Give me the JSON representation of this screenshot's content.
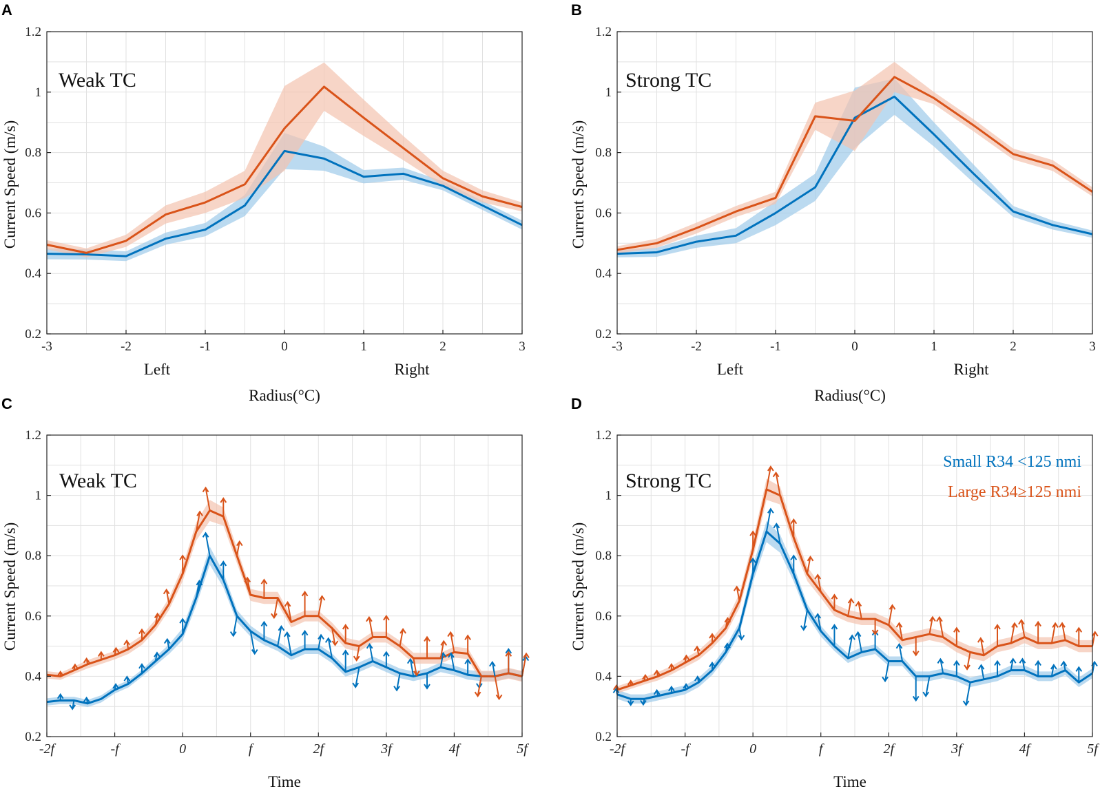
{
  "colors": {
    "small": "#0072BD",
    "small_band": "#9ECAE9",
    "large": "#D95319",
    "large_band": "#F3C3AF"
  },
  "legend": {
    "small": "Small R34 <125 nmi",
    "large": "Large R34≥125 nmi"
  },
  "chart_data": [
    {
      "id": "A",
      "type": "line",
      "title": "Weak TC",
      "xlabel": "Radius(°C)",
      "ylabel": "Current Speed (m/s)",
      "sublabels": [
        "Left",
        "Right"
      ],
      "xlim": [
        -3,
        3
      ],
      "ylim": [
        0.2,
        1.2
      ],
      "xticks": [
        -3,
        -2,
        -1,
        0,
        1,
        2,
        3
      ],
      "xticklabels": [
        "-3",
        "-2",
        "-1",
        "0",
        "1",
        "2",
        "3"
      ],
      "yticks": [
        0.2,
        0.4,
        0.6,
        0.8,
        1,
        1.2
      ],
      "yticklabels": [
        "0.2",
        "0.4",
        "0.6",
        "0.8",
        "1",
        "1.2"
      ],
      "x": [
        -3,
        -2.5,
        -2,
        -1.5,
        -1,
        -0.5,
        0,
        0.5,
        1,
        1.5,
        2,
        2.5,
        3
      ],
      "series": [
        {
          "name": "Small R34 <125 nmi",
          "values": [
            0.465,
            0.463,
            0.457,
            0.515,
            0.545,
            0.625,
            0.805,
            0.78,
            0.72,
            0.73,
            0.69,
            0.625,
            0.56
          ],
          "band": [
            0.018,
            0.017,
            0.016,
            0.02,
            0.022,
            0.035,
            0.06,
            0.04,
            0.022,
            0.02,
            0.015,
            0.015,
            0.015
          ]
        },
        {
          "name": "Large R34≥125 nmi",
          "values": [
            0.495,
            0.468,
            0.508,
            0.595,
            0.635,
            0.695,
            0.88,
            1.018,
            0.915,
            0.815,
            0.715,
            0.655,
            0.62
          ],
          "band": [
            0.015,
            0.015,
            0.02,
            0.03,
            0.035,
            0.045,
            0.14,
            0.08,
            0.06,
            0.04,
            0.025,
            0.02,
            0.015
          ]
        }
      ]
    },
    {
      "id": "B",
      "type": "line",
      "title": "Strong TC",
      "xlabel": "Radius(°C)",
      "ylabel": "Current Speed (m/s)",
      "sublabels": [
        "Left",
        "Right"
      ],
      "xlim": [
        -3,
        3
      ],
      "ylim": [
        0.2,
        1.2
      ],
      "xticks": [
        -3,
        -2,
        -1,
        0,
        1,
        2,
        3
      ],
      "xticklabels": [
        "-3",
        "-2",
        "-1",
        "0",
        "1",
        "2",
        "3"
      ],
      "yticks": [
        0.2,
        0.4,
        0.6,
        0.8,
        1,
        1.2
      ],
      "yticklabels": [
        "0.2",
        "0.4",
        "0.6",
        "0.8",
        "1",
        "1.2"
      ],
      "x": [
        -3,
        -2.5,
        -2,
        -1.5,
        -1,
        -0.5,
        0,
        0.5,
        1,
        1.5,
        2,
        2.5,
        3
      ],
      "series": [
        {
          "name": "Small R34 <125 nmi",
          "values": [
            0.465,
            0.47,
            0.505,
            0.525,
            0.6,
            0.685,
            0.915,
            0.985,
            0.86,
            0.73,
            0.605,
            0.56,
            0.53
          ],
          "band": [
            0.012,
            0.015,
            0.02,
            0.025,
            0.04,
            0.045,
            0.1,
            0.06,
            0.04,
            0.03,
            0.018,
            0.015,
            0.012
          ]
        },
        {
          "name": "Large R34≥125 nmi",
          "values": [
            0.478,
            0.5,
            0.55,
            0.605,
            0.65,
            0.92,
            0.905,
            1.05,
            0.98,
            0.89,
            0.795,
            0.757,
            0.67
          ],
          "band": [
            0.012,
            0.015,
            0.018,
            0.018,
            0.02,
            0.045,
            0.1,
            0.05,
            0.02,
            0.02,
            0.018,
            0.018,
            0.015
          ]
        }
      ]
    },
    {
      "id": "C",
      "type": "line",
      "title": "Weak TC",
      "xlabel": "Time",
      "ylabel": "Current Speed (m/s)",
      "xlim": [
        -2,
        5
      ],
      "ylim": [
        0.2,
        1.2
      ],
      "xticks": [
        -2,
        -1,
        0,
        1,
        2,
        3,
        4,
        5
      ],
      "xticklabels": [
        "-2f",
        "-f",
        "0",
        "f",
        "2f",
        "3f",
        "4f",
        "5f"
      ],
      "yticks": [
        0.2,
        0.4,
        0.6,
        0.8,
        1,
        1.2
      ],
      "yticklabels": [
        "0.2",
        "0.4",
        "0.6",
        "0.8",
        "1",
        "1.2"
      ],
      "x": [
        -2,
        -1.8,
        -1.6,
        -1.4,
        -1.2,
        -1,
        -0.8,
        -0.6,
        -0.4,
        -0.2,
        0,
        0.2,
        0.4,
        0.6,
        0.8,
        1,
        1.2,
        1.4,
        1.6,
        1.8,
        2,
        2.2,
        2.4,
        2.6,
        2.8,
        3,
        3.2,
        3.4,
        3.6,
        3.8,
        4,
        4.2,
        4.4,
        4.6,
        4.8,
        5
      ],
      "series": [
        {
          "name": "Small R34 <125 nmi",
          "values": [
            0.315,
            0.32,
            0.32,
            0.31,
            0.325,
            0.355,
            0.375,
            0.41,
            0.45,
            0.49,
            0.54,
            0.66,
            0.8,
            0.72,
            0.6,
            0.55,
            0.52,
            0.5,
            0.47,
            0.49,
            0.49,
            0.46,
            0.415,
            0.43,
            0.45,
            0.43,
            0.41,
            0.4,
            0.41,
            0.43,
            0.42,
            0.405,
            0.4,
            0.4,
            0.41,
            0.4
          ],
          "band": [
            0.012,
            0.012,
            0.012,
            0.012,
            0.012,
            0.012,
            0.012,
            0.012,
            0.014,
            0.016,
            0.02,
            0.025,
            0.03,
            0.025,
            0.02,
            0.018,
            0.016,
            0.016,
            0.016,
            0.016,
            0.016,
            0.016,
            0.016,
            0.016,
            0.016,
            0.016,
            0.016,
            0.016,
            0.016,
            0.016,
            0.016,
            0.016,
            0.016,
            0.016,
            0.016,
            0.016
          ],
          "arrows": [
            0,
            0.02,
            -0.03,
            0.02,
            0,
            0.02,
            0.025,
            0.03,
            0.03,
            0.035,
            0.05,
            0.06,
            0.08,
            0.06,
            -0.07,
            -0.08,
            0.06,
            0.07,
            0.08,
            0.06,
            0.05,
            0.07,
            0.07,
            -0.07,
            0.06,
            0.05,
            -0.06,
            0.06,
            -0.05,
            0.05,
            0.06,
            0.05,
            -0.04,
            0.05,
            0.08,
            0.07
          ]
        },
        {
          "name": "Large R34≥125 nmi",
          "values": [
            0.405,
            0.4,
            0.42,
            0.44,
            0.455,
            0.47,
            0.49,
            0.52,
            0.57,
            0.64,
            0.74,
            0.88,
            0.95,
            0.93,
            0.8,
            0.67,
            0.66,
            0.66,
            0.58,
            0.6,
            0.6,
            0.56,
            0.51,
            0.5,
            0.53,
            0.53,
            0.5,
            0.46,
            0.46,
            0.46,
            0.48,
            0.475,
            0.4,
            0.4,
            0.41,
            0.4
          ],
          "band": [
            0.012,
            0.012,
            0.012,
            0.014,
            0.014,
            0.014,
            0.016,
            0.016,
            0.018,
            0.02,
            0.025,
            0.03,
            0.035,
            0.03,
            0.025,
            0.02,
            0.02,
            0.02,
            0.018,
            0.018,
            0.018,
            0.018,
            0.018,
            0.018,
            0.018,
            0.018,
            0.018,
            0.018,
            0.018,
            0.018,
            0.018,
            0.018,
            0.018,
            0.018,
            0.018,
            0.018
          ],
          "arrows": [
            0,
            0.015,
            0.02,
            0.02,
            0.025,
            0.025,
            0.03,
            0.035,
            0.04,
            0.05,
            0.06,
            0.07,
            0.08,
            0.06,
            0.05,
            0.06,
            0.06,
            -0.07,
            0.07,
            0.08,
            0.07,
            -0.06,
            0.06,
            -0.05,
            0.07,
            0.07,
            0.06,
            -0.06,
            0.07,
            0.06,
            0.07,
            0.06,
            -0.07,
            -0.08,
            0.07,
            0.08
          ]
        }
      ]
    },
    {
      "id": "D",
      "type": "line",
      "title": "Strong TC",
      "xlabel": "Time",
      "ylabel": "Current Speed (m/s)",
      "legend": true,
      "xlim": [
        -2,
        5
      ],
      "ylim": [
        0.2,
        1.2
      ],
      "xticks": [
        -2,
        -1,
        0,
        1,
        2,
        3,
        4,
        5
      ],
      "xticklabels": [
        "-2f",
        "-f",
        "0",
        "f",
        "2f",
        "3f",
        "4f",
        "5f"
      ],
      "yticks": [
        0.2,
        0.4,
        0.6,
        0.8,
        1,
        1.2
      ],
      "yticklabels": [
        "0.2",
        "0.4",
        "0.6",
        "0.8",
        "1",
        "1.2"
      ],
      "x": [
        -2,
        -1.8,
        -1.6,
        -1.4,
        -1.2,
        -1,
        -0.8,
        -0.6,
        -0.4,
        -0.2,
        0,
        0.2,
        0.4,
        0.6,
        0.8,
        1,
        1.2,
        1.4,
        1.6,
        1.8,
        2,
        2.2,
        2.4,
        2.6,
        2.8,
        3,
        3.2,
        3.4,
        3.6,
        3.8,
        4,
        4.2,
        4.4,
        4.6,
        4.8,
        5
      ],
      "series": [
        {
          "name": "Small R34 <125 nmi",
          "values": [
            0.34,
            0.325,
            0.325,
            0.335,
            0.345,
            0.355,
            0.38,
            0.42,
            0.48,
            0.56,
            0.74,
            0.88,
            0.84,
            0.74,
            0.62,
            0.55,
            0.5,
            0.46,
            0.48,
            0.49,
            0.45,
            0.45,
            0.4,
            0.4,
            0.41,
            0.4,
            0.38,
            0.39,
            0.4,
            0.42,
            0.42,
            0.4,
            0.4,
            0.42,
            0.38,
            0.41
          ],
          "band": [
            0.015,
            0.015,
            0.015,
            0.015,
            0.015,
            0.015,
            0.016,
            0.016,
            0.018,
            0.02,
            0.028,
            0.035,
            0.03,
            0.025,
            0.02,
            0.018,
            0.016,
            0.016,
            0.016,
            0.016,
            0.016,
            0.016,
            0.016,
            0.016,
            0.016,
            0.016,
            0.016,
            0.016,
            0.016,
            0.016,
            0.016,
            0.016,
            0.016,
            0.016,
            0.016,
            0.016
          ],
          "arrows": [
            0.02,
            -0.02,
            -0.02,
            0.02,
            0.02,
            0.02,
            0.02,
            0.025,
            0.03,
            -0.04,
            0.05,
            0.08,
            0.07,
            0.06,
            -0.07,
            0.06,
            0.07,
            0.08,
            0.07,
            0.06,
            -0.07,
            0.06,
            -0.08,
            -0.07,
            0.05,
            0.05,
            -0.08,
            0.05,
            0.05,
            0.04,
            0.04,
            0.05,
            0.04,
            0.03,
            0.05,
            0.04
          ]
        },
        {
          "name": "Large R34≥125 nmi",
          "values": [
            0.355,
            0.37,
            0.385,
            0.4,
            0.42,
            0.445,
            0.47,
            0.51,
            0.56,
            0.65,
            0.82,
            1.02,
            1.0,
            0.86,
            0.74,
            0.68,
            0.62,
            0.6,
            0.59,
            0.59,
            0.57,
            0.52,
            0.53,
            0.54,
            0.53,
            0.5,
            0.48,
            0.47,
            0.5,
            0.51,
            0.53,
            0.51,
            0.51,
            0.52,
            0.5,
            0.5
          ],
          "band": [
            0.012,
            0.012,
            0.012,
            0.014,
            0.014,
            0.015,
            0.016,
            0.017,
            0.02,
            0.024,
            0.03,
            0.035,
            0.03,
            0.028,
            0.024,
            0.02,
            0.02,
            0.02,
            0.02,
            0.02,
            0.02,
            0.02,
            0.02,
            0.02,
            0.02,
            0.02,
            0.02,
            0.02,
            0.02,
            0.02,
            0.02,
            0.02,
            0.02,
            0.02,
            0.02,
            0.02
          ],
          "arrows": [
            0.015,
            0.015,
            0.02,
            0.02,
            0.02,
            0.025,
            0.03,
            0.03,
            0.035,
            0.05,
            0.06,
            0.08,
            0.08,
            0.06,
            0.06,
            0.06,
            0.05,
            0.06,
            0.06,
            -0.05,
            0.07,
            0.06,
            -0.06,
            0.06,
            0.07,
            0.06,
            -0.06,
            0.06,
            0.07,
            0.07,
            0.06,
            0.07,
            0.07,
            0.06,
            0.06,
            0.05
          ]
        }
      ]
    }
  ]
}
